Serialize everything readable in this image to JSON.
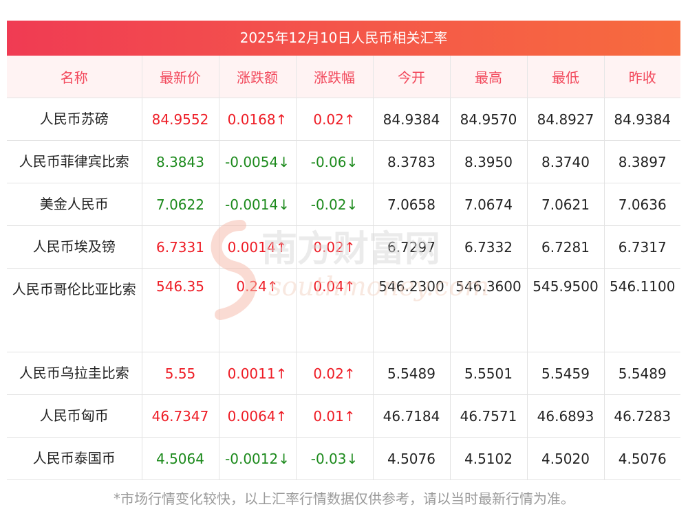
{
  "title": "2025年12月10日人民币相关汇率",
  "headers": [
    "名称",
    "最新价",
    "涨跌额",
    "涨跌幅",
    "今开",
    "最高",
    "最低",
    "昨收"
  ],
  "rows": [
    {
      "name": "人民币苏磅",
      "latest": "84.9552",
      "change": "0.0168↑",
      "pct": "0.02↑",
      "open": "84.9384",
      "high": "84.9570",
      "low": "84.8927",
      "prev": "84.9384",
      "dir": "up"
    },
    {
      "name": "人民币菲律宾比索",
      "latest": "8.3843",
      "change": "-0.0054↓",
      "pct": "-0.06↓",
      "open": "8.3783",
      "high": "8.3950",
      "low": "8.3740",
      "prev": "8.3897",
      "dir": "down"
    },
    {
      "name": "美金人民币",
      "latest": "7.0622",
      "change": "-0.0014↓",
      "pct": "-0.02↓",
      "open": "7.0658",
      "high": "7.0674",
      "low": "7.0621",
      "prev": "7.0636",
      "dir": "down"
    },
    {
      "name": "人民币埃及镑",
      "latest": "6.7331",
      "change": "0.0014↑",
      "pct": "0.02↑",
      "open": "6.7297",
      "high": "6.7332",
      "low": "6.7281",
      "prev": "6.7317",
      "dir": "up"
    },
    {
      "name": "人民币哥伦比亚比索",
      "latest": "546.35",
      "change": "0.24↑",
      "pct": "0.04↑",
      "open": "546.2300",
      "high": "546.3600",
      "low": "545.9500",
      "prev": "546.1100",
      "dir": "up"
    },
    {
      "name": "人民币乌拉圭比索",
      "latest": "5.55",
      "change": "0.0011↑",
      "pct": "0.02↑",
      "open": "5.5489",
      "high": "5.5501",
      "low": "5.5459",
      "prev": "5.5489",
      "dir": "up"
    },
    {
      "name": "人民币匈币",
      "latest": "46.7347",
      "change": "0.0064↑",
      "pct": "0.01↑",
      "open": "46.7184",
      "high": "46.7571",
      "low": "46.6893",
      "prev": "46.7283",
      "dir": "up"
    },
    {
      "name": "人民币泰国币",
      "latest": "4.5064",
      "change": "-0.0012↓",
      "pct": "-0.03↓",
      "open": "4.5076",
      "high": "4.5102",
      "low": "4.5020",
      "prev": "4.5076",
      "dir": "down"
    }
  ],
  "footer": "*市场行情变化较快，以上汇率行情数据仅供参考，请以当时最新行情为准。",
  "watermark": {
    "cn": "南方财富网",
    "en": "southmoney.com"
  },
  "colors": {
    "up": "#ee1c25",
    "down": "#1c8a1c",
    "header_text": "#f2495c",
    "title_bg_start": "#f03b53",
    "title_bg_end": "#f76b3e"
  }
}
